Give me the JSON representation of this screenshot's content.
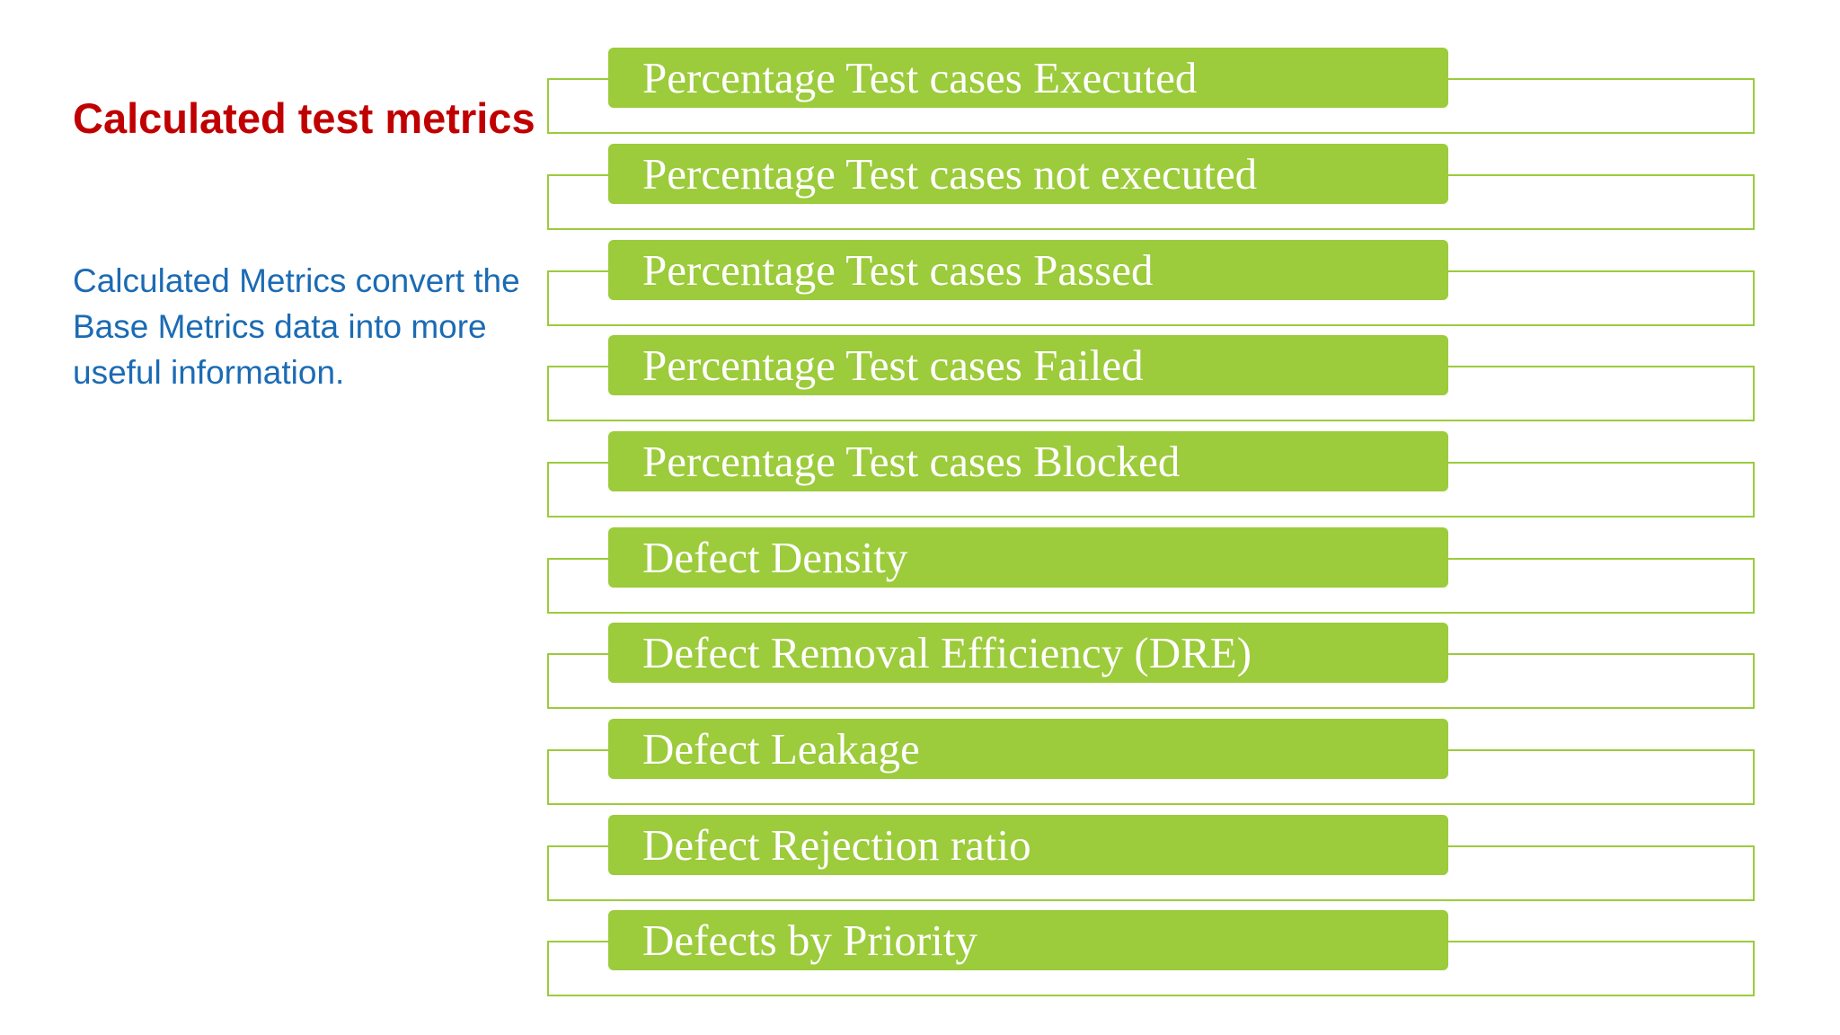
{
  "slide": {
    "title": "Calculated test metrics",
    "description": "Calculated Metrics convert the Base Metrics data into more useful information."
  },
  "metrics": [
    "Percentage Test cases Executed",
    "Percentage Test cases not executed",
    "Percentage Test cases Passed",
    "Percentage Test cases Failed",
    "Percentage Test cases Blocked",
    "Defect Density",
    "Defect Removal Efficiency (DRE)",
    "Defect Leakage",
    "Defect Rejection ratio",
    "Defects by Priority"
  ],
  "colors": {
    "title": "#c00000",
    "description": "#1b6bb4",
    "bar": "#9ccb3b",
    "bar_text": "#ffffff"
  }
}
